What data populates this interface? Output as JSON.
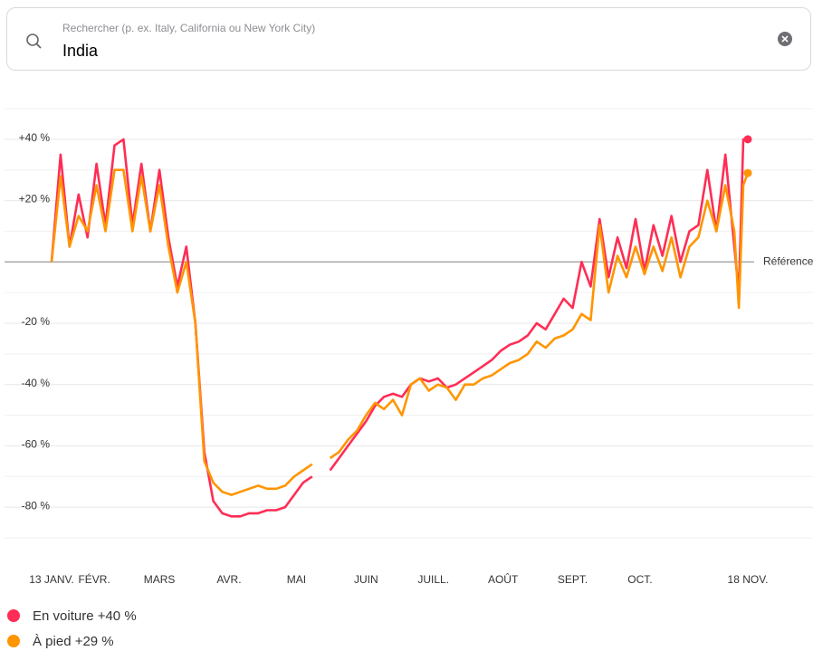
{
  "search": {
    "placeholder": "Rechercher (p. ex. Italy, California ou New York City)",
    "query": "India"
  },
  "chart_data": {
    "type": "line",
    "x": [
      0,
      4,
      8,
      12,
      16,
      20,
      24,
      28,
      32,
      36,
      40,
      44,
      48,
      52,
      56,
      60,
      64,
      68,
      72,
      76,
      80,
      84,
      88,
      92,
      96,
      100,
      104,
      108,
      112,
      116,
      120,
      124,
      128,
      132,
      136,
      140,
      144,
      148,
      152,
      156,
      160,
      164,
      168,
      172,
      176,
      180,
      184,
      188,
      192,
      196,
      200,
      204,
      208,
      212,
      216,
      220,
      224,
      228,
      232,
      236,
      240,
      244,
      248,
      252,
      256,
      260,
      264,
      268,
      272,
      276,
      280,
      284,
      288,
      292,
      296,
      300,
      304,
      306,
      308,
      310
    ],
    "series": [
      {
        "name": "En voiture +40 %",
        "color": "#ff2d55",
        "values": [
          0,
          35,
          5,
          22,
          8,
          32,
          12,
          38,
          40,
          12,
          32,
          10,
          30,
          8,
          -8,
          5,
          -20,
          -62,
          -78,
          -82,
          -83,
          -83,
          -82,
          -82,
          -81,
          -81,
          -80,
          -76,
          -72,
          -70,
          null,
          -68,
          -64,
          -60,
          -56,
          -52,
          -47,
          -44,
          -43,
          -44,
          -40,
          -38,
          -39,
          -38,
          -41,
          -40,
          -38,
          -36,
          -34,
          -32,
          -29,
          -27,
          -26,
          -24,
          -20,
          -22,
          -17,
          -12,
          -15,
          0,
          -8,
          14,
          -5,
          8,
          -2,
          14,
          -3,
          12,
          2,
          15,
          0,
          10,
          12,
          30,
          10,
          35,
          5,
          -10,
          40,
          40
        ]
      },
      {
        "name": "À pied +29 %",
        "color": "#ff9500",
        "values": [
          0,
          28,
          5,
          15,
          10,
          25,
          10,
          30,
          30,
          10,
          28,
          10,
          25,
          5,
          -10,
          0,
          -20,
          -65,
          -72,
          -75,
          -76,
          -75,
          -74,
          -73,
          -74,
          -74,
          -73,
          -70,
          -68,
          -66,
          null,
          -64,
          -62,
          -58,
          -55,
          -50,
          -46,
          -48,
          -45,
          -50,
          -40,
          -38,
          -42,
          -40,
          -41,
          -45,
          -40,
          -40,
          -38,
          -37,
          -35,
          -33,
          -32,
          -30,
          -26,
          -28,
          -25,
          -24,
          -22,
          -17,
          -19,
          12,
          -10,
          2,
          -5,
          5,
          -4,
          5,
          -3,
          8,
          -5,
          5,
          8,
          20,
          10,
          25,
          10,
          -15,
          25,
          29
        ]
      }
    ],
    "xlim": [
      0,
      310
    ],
    "xticks": [
      {
        "value": 0,
        "label": "13 JANV."
      },
      {
        "value": 19,
        "label": "FÉVR."
      },
      {
        "value": 48,
        "label": "MARS"
      },
      {
        "value": 79,
        "label": "AVR."
      },
      {
        "value": 109,
        "label": "MAI"
      },
      {
        "value": 140,
        "label": "JUIN"
      },
      {
        "value": 170,
        "label": "JUILL."
      },
      {
        "value": 201,
        "label": "AOÛT"
      },
      {
        "value": 232,
        "label": "SEPT."
      },
      {
        "value": 262,
        "label": "OCT."
      },
      {
        "value": 310,
        "label": "18 NOV."
      }
    ],
    "ylim": [
      -90,
      50
    ],
    "yticks": [
      {
        "value": 40,
        "label": "+40 %"
      },
      {
        "value": 20,
        "label": "+20 %"
      },
      {
        "value": -20,
        "label": "-20 %"
      },
      {
        "value": -40,
        "label": "-40 %"
      },
      {
        "value": -60,
        "label": "-60 %"
      },
      {
        "value": -80,
        "label": "-80 %"
      }
    ],
    "minor_yticks": [
      50,
      30,
      10,
      -10,
      -30,
      -50,
      -70,
      -90
    ],
    "baseline": {
      "value": 0,
      "label": "Référence"
    },
    "grid": true
  }
}
